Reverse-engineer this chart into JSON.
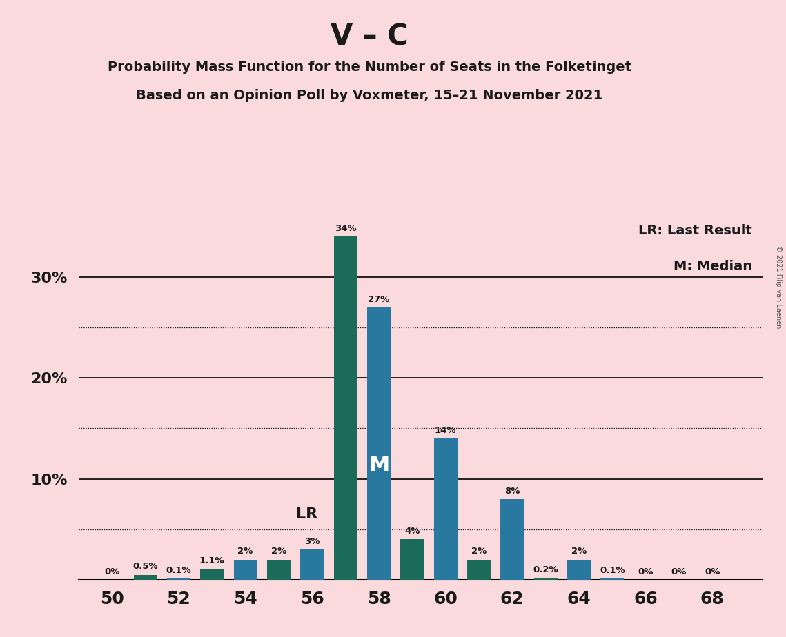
{
  "title1": "V – C",
  "title2": "Probability Mass Function for the Number of Seats in the Folketinget",
  "title3": "Based on an Opinion Poll by Voxmeter, 15–21 November 2021",
  "copyright": "© 2021 Filip van Laenen",
  "legend_lr": "LR: Last Result",
  "legend_m": "M: Median",
  "seats": [
    50,
    51,
    52,
    53,
    54,
    55,
    56,
    57,
    58,
    59,
    60,
    61,
    62,
    63,
    64,
    65,
    66,
    67,
    68
  ],
  "values": [
    0.0,
    0.5,
    0.1,
    1.1,
    2.0,
    2.0,
    3.0,
    34.0,
    27.0,
    4.0,
    14.0,
    2.0,
    8.0,
    0.2,
    2.0,
    0.1,
    0.0,
    0.0,
    0.0
  ],
  "labels": [
    "0%",
    "0.5%",
    "0.1%",
    "1.1%",
    "2%",
    "2%",
    "3%",
    "34%",
    "27%",
    "4%",
    "14%",
    "2%",
    "8%",
    "0.2%",
    "2%",
    "0.1%",
    "0%",
    "0%",
    "0%"
  ],
  "colors": [
    "#2878a0",
    "#1a6b5a",
    "#2878a0",
    "#1a6b5a",
    "#2878a0",
    "#1a6b5a",
    "#2878a0",
    "#1a6b5a",
    "#2878a0",
    "#1a6b5a",
    "#2878a0",
    "#1a6b5a",
    "#2878a0",
    "#1a6b5a",
    "#2878a0",
    "#2878a0",
    "#2878a0",
    "#2878a0",
    "#2878a0"
  ],
  "lr_seat": 56,
  "median_seat": 58,
  "background_color": "#fadadd",
  "ylim_max": 36,
  "solid_lines": [
    10,
    20,
    30
  ],
  "dotted_lines": [
    5,
    15,
    25
  ],
  "bar_width": 0.7
}
